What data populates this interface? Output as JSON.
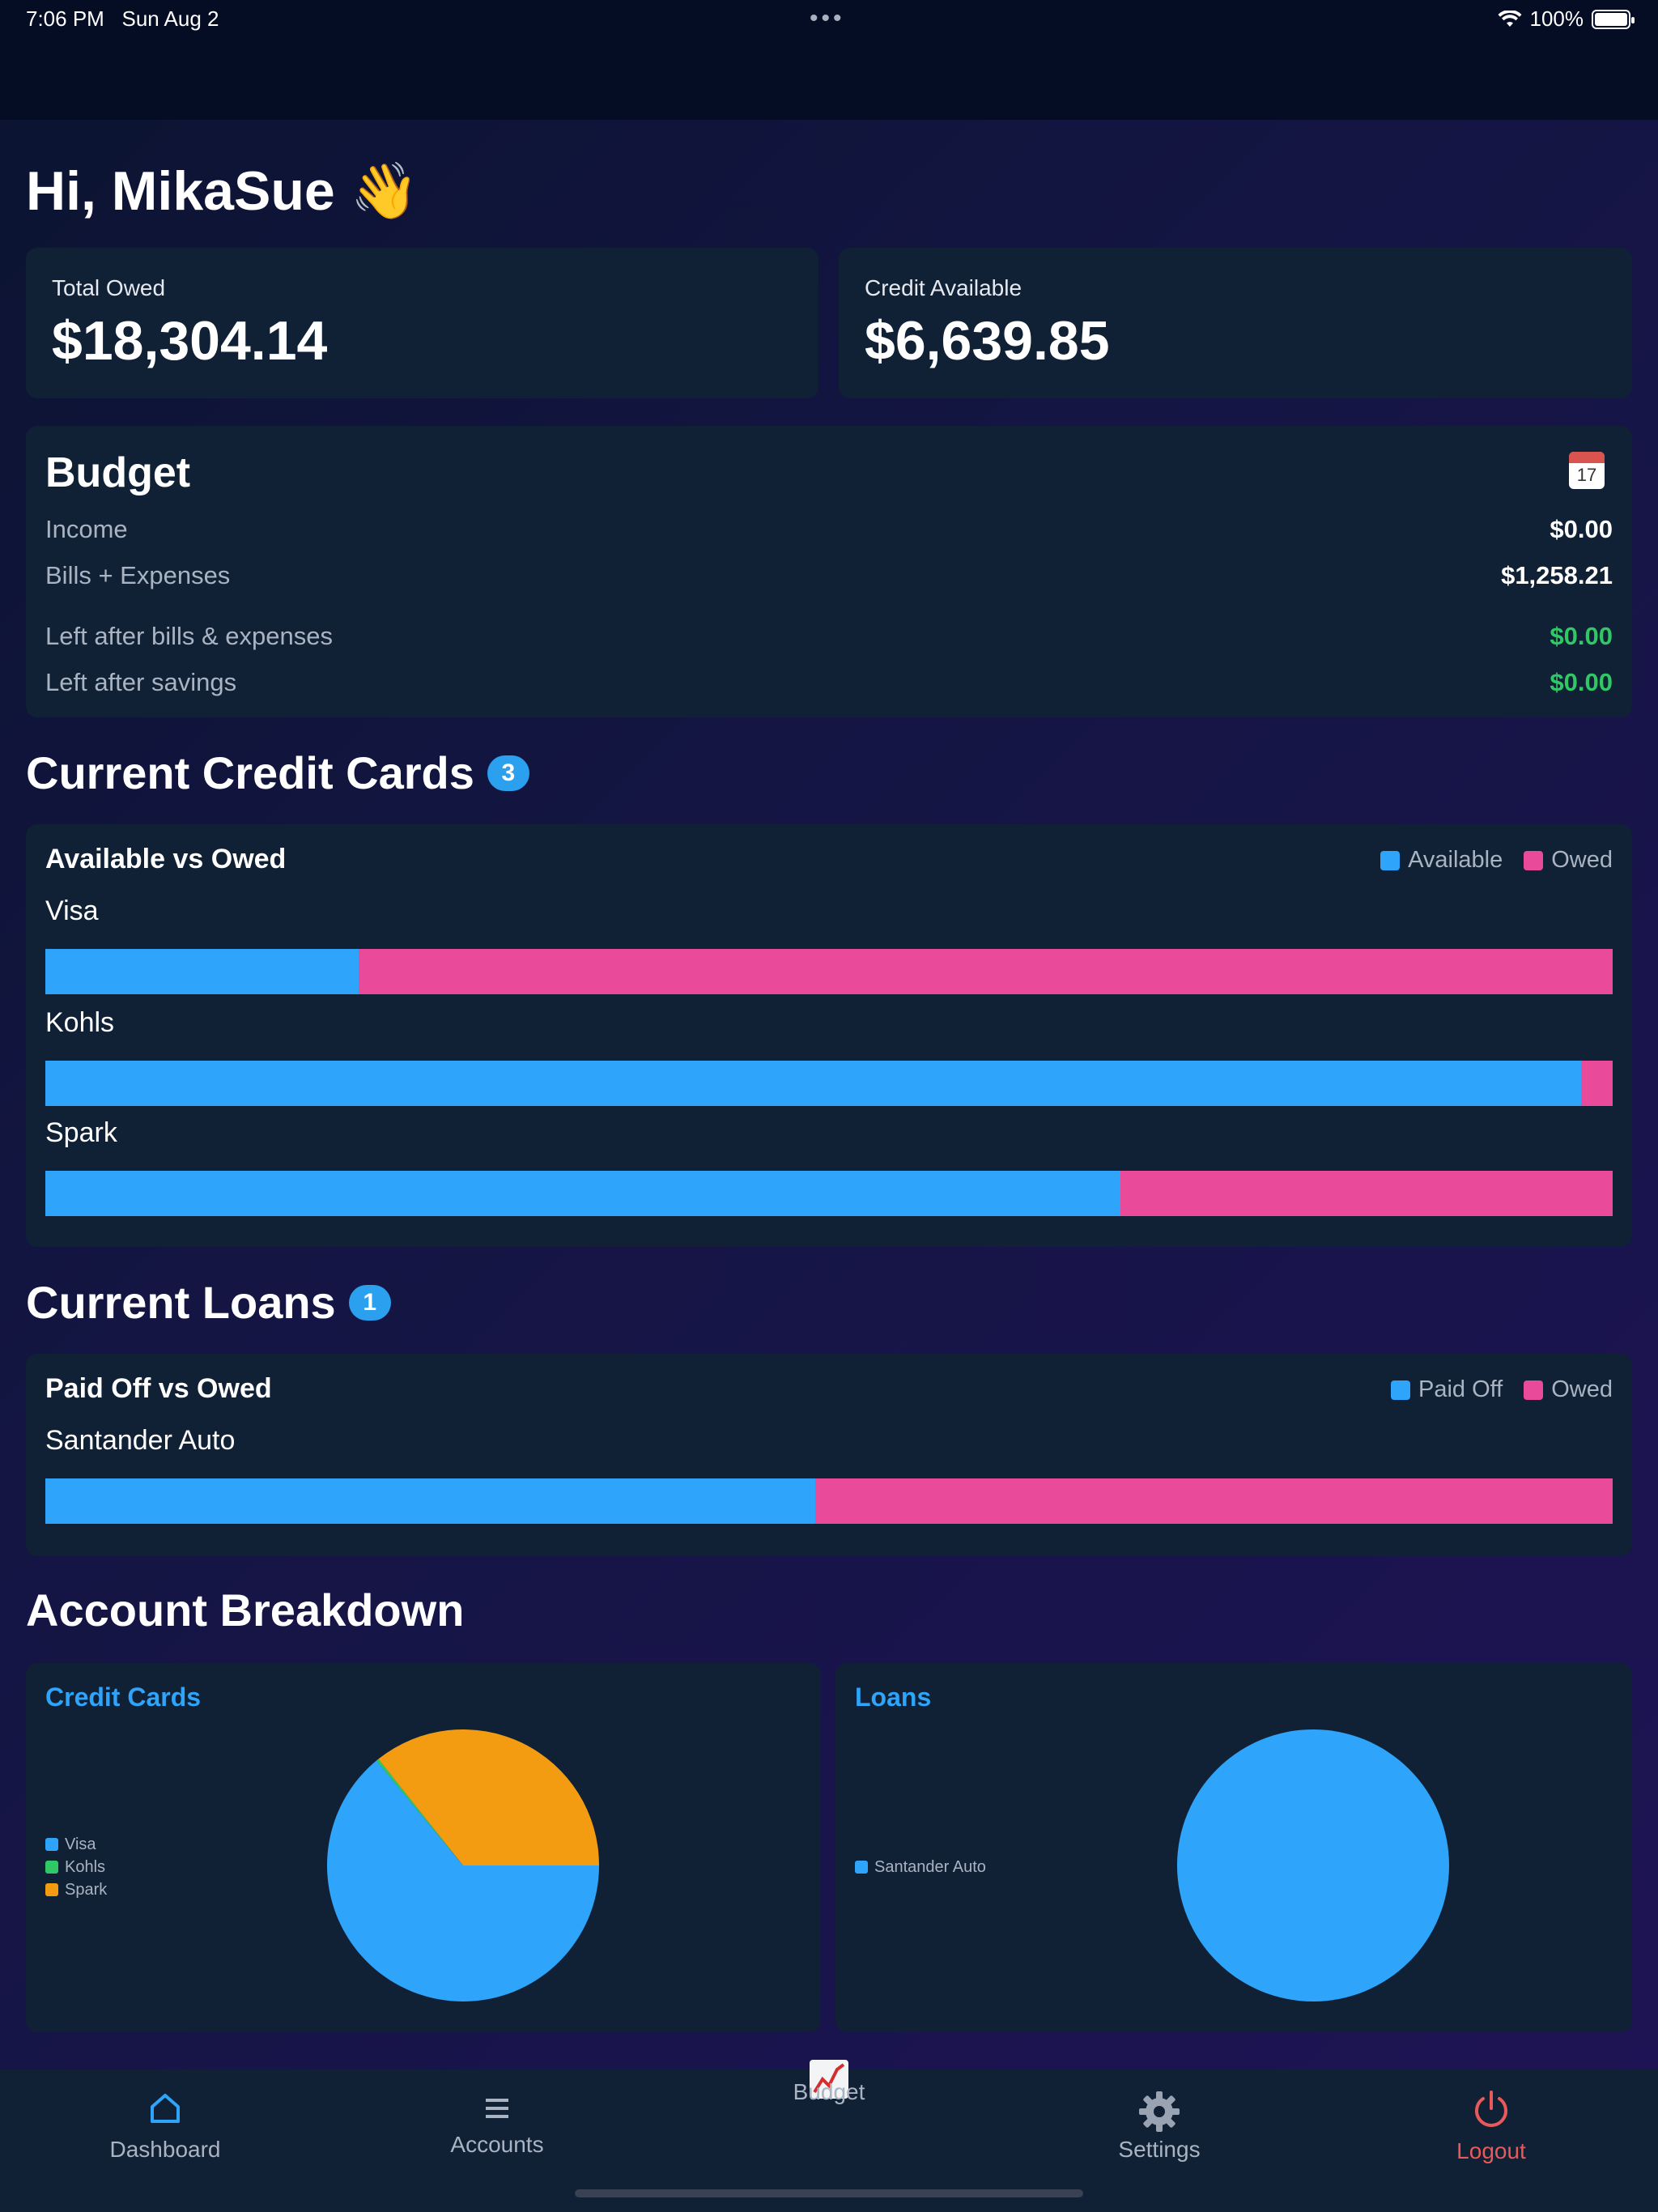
{
  "status_bar": {
    "time": "7:06 PM",
    "date": "Sun Aug 2",
    "battery": "100%"
  },
  "greeting": "Hi, MikaSue 👋",
  "totals": {
    "total_owed_label": "Total Owed",
    "total_owed_value": "$18,304.14",
    "credit_available_label": "Credit Available",
    "credit_available_value": "$6,639.85"
  },
  "budget": {
    "title": "Budget",
    "calendar_day": "17",
    "rows": [
      {
        "label": "Income",
        "value": "$0.00"
      },
      {
        "label": "Bills + Expenses",
        "value": "$1,258.21"
      },
      {
        "label": "Left after bills & expenses",
        "value": "$0.00"
      },
      {
        "label": "Left after savings",
        "value": "$0.00"
      }
    ],
    "colors": {
      "green": "#2fc864"
    }
  },
  "credit_cards": {
    "title": "Current Credit Cards",
    "count": "3",
    "chart_title": "Available vs Owed",
    "legend": [
      "Available",
      "Owed"
    ],
    "items": [
      {
        "name": "Visa",
        "available_fraction": 0.2
      },
      {
        "name": "Kohls",
        "available_fraction": 0.98
      },
      {
        "name": "Spark",
        "available_fraction": 0.686
      }
    ]
  },
  "loans": {
    "title": "Current Loans",
    "count": "1",
    "chart_title": "Paid Off vs Owed",
    "legend": [
      "Paid Off",
      "Owed"
    ],
    "items": [
      {
        "name": "Santander Auto",
        "paid_fraction": 0.491
      }
    ]
  },
  "breakdown": {
    "title": "Account Breakdown",
    "credit_cards_title": "Credit Cards",
    "loans_title": "Loans"
  },
  "chart_data": [
    {
      "type": "pie",
      "title": "Credit Cards",
      "categories": [
        "Visa",
        "Kohls",
        "Spark"
      ],
      "values": [
        64,
        0.3,
        35.7
      ],
      "colors": [
        "#2ea4fa",
        "#2fc864",
        "#f39c12"
      ]
    },
    {
      "type": "pie",
      "title": "Loans",
      "categories": [
        "Santander Auto"
      ],
      "values": [
        100
      ],
      "colors": [
        "#2ea4fa"
      ]
    }
  ],
  "tabs": [
    {
      "label": "Dashboard",
      "icon": "home-icon"
    },
    {
      "label": "Accounts",
      "icon": "list-icon"
    },
    {
      "label": "Budget",
      "icon": "chart-icon"
    },
    {
      "label": "Settings",
      "icon": "gear-icon"
    },
    {
      "label": "Logout",
      "icon": "power-icon"
    }
  ],
  "colors": {
    "available": "#2ea4fa",
    "owed": "#ea4a9a",
    "logout": "#e85a5a",
    "active_tab": "#2ea4fa"
  }
}
